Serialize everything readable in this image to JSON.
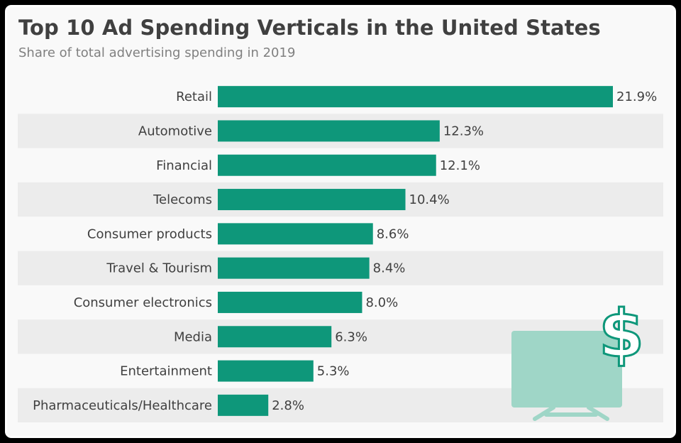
{
  "header": {
    "title": "Top 10 Ad Spending Verticals in the United States",
    "subtitle": "Share of total advertising spending in 2019"
  },
  "chart_data": {
    "type": "bar",
    "orientation": "horizontal",
    "categories": [
      "Retail",
      "Automotive",
      "Financial",
      "Telecoms",
      "Consumer products",
      "Travel & Tourism",
      "Consumer electronics",
      "Media",
      "Entertainment",
      "Pharmaceuticals/Healthcare"
    ],
    "values": [
      21.9,
      12.3,
      12.1,
      10.4,
      8.6,
      8.4,
      8.0,
      6.3,
      5.3,
      2.8
    ],
    "value_labels": [
      "21.9%",
      "12.3%",
      "12.1%",
      "10.4%",
      "8.6%",
      "8.4%",
      "8.0%",
      "6.3%",
      "5.3%",
      "2.8%"
    ],
    "title": "Top 10 Ad Spending Verticals in the United States",
    "subtitle": "Share of total advertising spending in 2019",
    "xlim": [
      0,
      21.9
    ],
    "grid": false,
    "legend": "none"
  },
  "colors": {
    "bar": "#0e977a",
    "row_band": "#ececec",
    "label_text": "#404040",
    "illustration_fill": "#9fd6c7",
    "dollar_stroke": "#0e977a"
  },
  "decoration": {
    "icon": "tv-dollar-icon"
  }
}
